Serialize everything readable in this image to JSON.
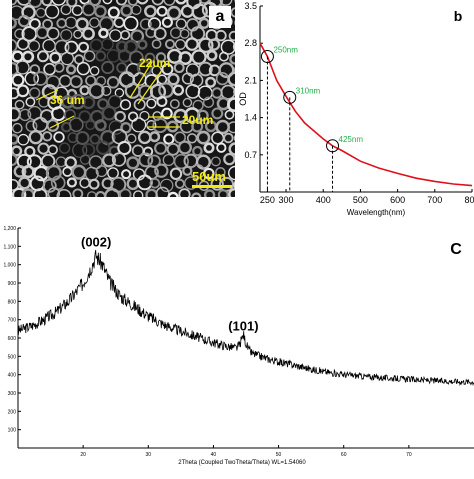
{
  "panels": {
    "a": {
      "letter": "a",
      "measurements": [
        "22um",
        "36 um",
        "20um"
      ],
      "scale_bar": "50um",
      "label_color": "#f2ea10"
    }
  },
  "chart_data": [
    {
      "type": "line",
      "panel_letter": "b",
      "xlabel": "Wavelength(nm)",
      "ylabel": "OD",
      "xlim": [
        230,
        800
      ],
      "ylim": [
        0,
        3.5
      ],
      "x_ticks": [
        "250",
        "300",
        "400",
        "500",
        "600",
        "700",
        "800"
      ],
      "y_ticks": [
        "3.5",
        "2.8",
        "2.1",
        "1.4",
        "0.7"
      ],
      "grid": false,
      "series": [
        {
          "color": "#e0101a",
          "x": [
            230,
            250,
            275,
            300,
            325,
            350,
            400,
            425,
            450,
            500,
            550,
            600,
            650,
            700,
            750,
            800
          ],
          "y": [
            2.8,
            2.55,
            2.1,
            1.8,
            1.52,
            1.3,
            1.0,
            0.87,
            0.78,
            0.58,
            0.45,
            0.35,
            0.26,
            0.2,
            0.15,
            0.12
          ]
        }
      ],
      "annotations": [
        {
          "label": "250nm",
          "x": 250,
          "y": 2.55
        },
        {
          "label": "310nm",
          "x": 310,
          "y": 1.78
        },
        {
          "label": "425nm",
          "x": 425,
          "y": 0.87
        }
      ],
      "annotation_color": "#22b04a"
    },
    {
      "type": "line",
      "panel_letter": "C",
      "xlabel": "2Theta (Coupled TwoTheta/Theta) WL=1.54060",
      "ylabel": "",
      "xlim": [
        10,
        80
      ],
      "ylim": [
        0,
        1200
      ],
      "x_ticks": [
        "20",
        "30",
        "40",
        "50",
        "60",
        "70"
      ],
      "y_ticks": [
        "1,200",
        "1,100",
        "1,000",
        "900",
        "800",
        "700",
        "600",
        "500",
        "400",
        "300",
        "200",
        "100"
      ],
      "grid": false,
      "series": [
        {
          "color": "#000000",
          "x": [
            10,
            12,
            14,
            16,
            18,
            20,
            21,
            22,
            23,
            24,
            25,
            26,
            28,
            30,
            32,
            34,
            36,
            38,
            40,
            42,
            43.5,
            44,
            44.6,
            45,
            45.5,
            46,
            48,
            50,
            52,
            55,
            58,
            60,
            65,
            70,
            75,
            80
          ],
          "y": [
            640,
            665,
            700,
            745,
            810,
            900,
            970,
            1050,
            1000,
            910,
            860,
            820,
            770,
            720,
            680,
            650,
            625,
            600,
            575,
            555,
            545,
            560,
            620,
            570,
            530,
            515,
            490,
            470,
            455,
            430,
            410,
            400,
            385,
            375,
            365,
            360
          ]
        }
      ],
      "annotations": [
        {
          "label": "(002)",
          "x": 22,
          "y": 1100
        },
        {
          "label": "(101)",
          "x": 44.6,
          "y": 640
        }
      ]
    }
  ]
}
